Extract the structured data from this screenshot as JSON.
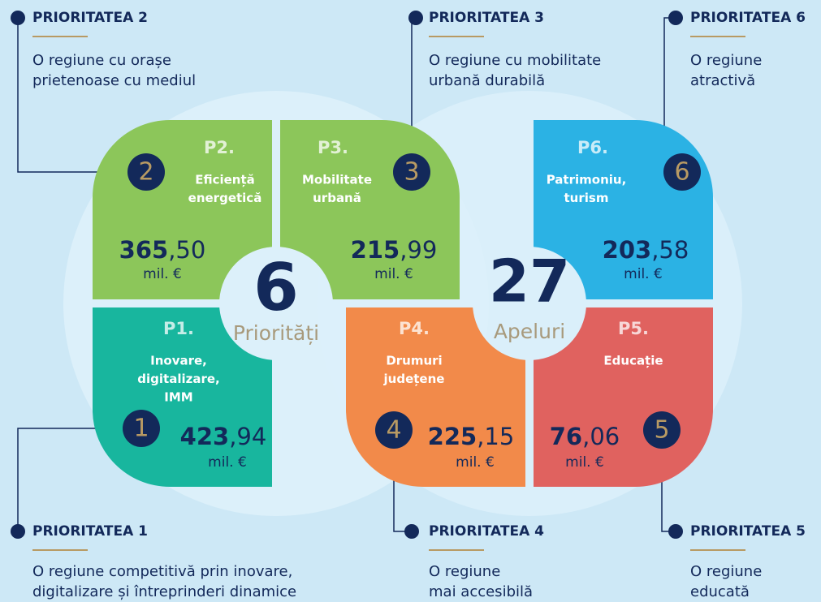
{
  "center": [
    {
      "value": 6,
      "label": "Priorități"
    },
    {
      "value": 27,
      "label": "Apeluri"
    }
  ],
  "priorities": [
    {
      "number": "2",
      "header": "PRIORITATEA 2",
      "description": [
        "O regiune cu orașe",
        "prietenoase cu mediul"
      ],
      "code": "P2.",
      "label": [
        "Eficiență",
        "energetică"
      ],
      "amount": "365",
      "amount_decimals": ",50",
      "unit": "mil. €"
    },
    {
      "number": "3",
      "header": "PRIORITATEA 3",
      "description": [
        "O regiune cu mobilitate",
        "urbană durabilă"
      ],
      "code": "P3.",
      "label": [
        "Mobilitate",
        "urbană"
      ],
      "amount": "215",
      "amount_decimals": ",99",
      "unit": "mil. €"
    },
    {
      "number": "6",
      "header": "PRIORITATEA 6",
      "description": [
        "O regiune",
        "atractivă"
      ],
      "code": "P6.",
      "label": [
        "Patrimoniu,",
        "turism"
      ],
      "amount": "203",
      "amount_decimals": ",58",
      "unit": "mil. €"
    },
    {
      "number": "1",
      "header": "PRIORITATEA 1",
      "description": [
        "O regiune competitivă prin inovare,",
        "digitalizare și întreprinderi dinamice"
      ],
      "code": "P1.",
      "label": [
        "Inovare,",
        "digitalizare,",
        "IMM"
      ],
      "amount": "423",
      "amount_decimals": ",94",
      "unit": "mil. €"
    },
    {
      "number": "4",
      "header": "PRIORITATEA 4",
      "description": [
        "O regiune",
        "mai accesibilă"
      ],
      "code": "P4.",
      "label": [
        "Drumuri",
        "județene"
      ],
      "amount": "225",
      "amount_decimals": ",15",
      "unit": "mil. €"
    },
    {
      "number": "5",
      "header": "PRIORITATEA 5",
      "description": [
        "O regiune",
        "educată"
      ],
      "code": "P5.",
      "label": [
        "Educație"
      ],
      "amount": "76",
      "amount_decimals": ",06",
      "unit": "mil. €"
    }
  ]
}
